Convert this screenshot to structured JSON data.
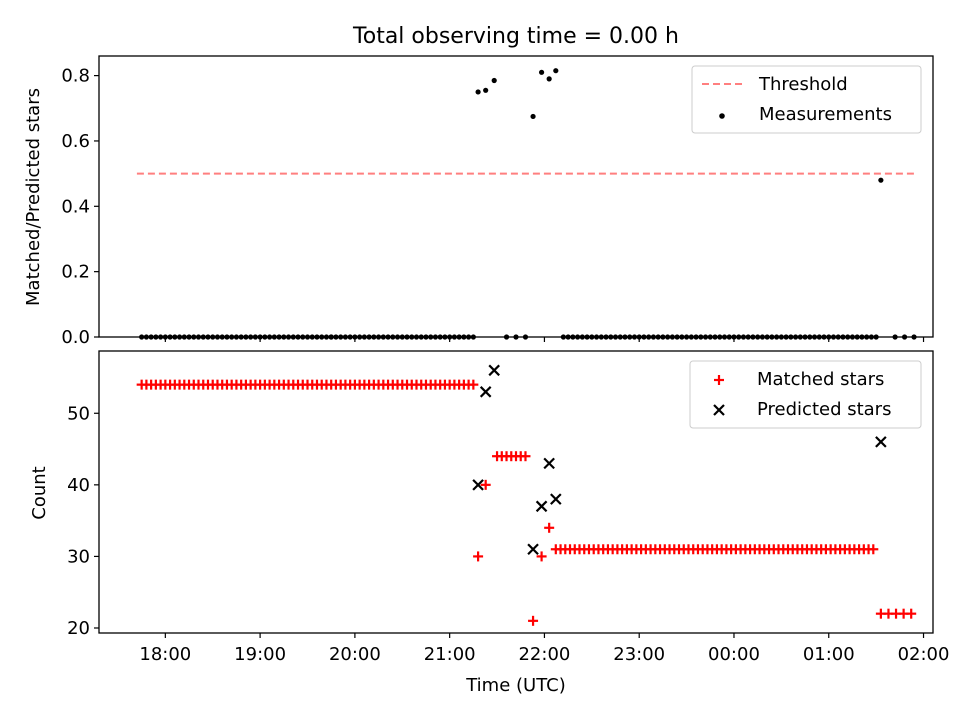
{
  "chart_data": {
    "title": "Total observing time = 0.00 h",
    "xlabel": "Time (UTC)",
    "x_ticks": [
      "18:00",
      "19:00",
      "20:00",
      "21:00",
      "22:00",
      "23:00",
      "00:00",
      "01:00",
      "02:00"
    ],
    "x_range_hours": [
      17.3,
      26.1
    ],
    "panels": [
      {
        "type": "scatter",
        "ylabel": "Matched/Predicted stars",
        "ylim": [
          0,
          0.86
        ],
        "y_ticks": [
          "0.0",
          "0.2",
          "0.4",
          "0.6",
          "0.8"
        ],
        "legend_position": "upper-right",
        "threshold": {
          "name": "Threshold",
          "value": 0.5,
          "x_start": 17.7,
          "x_end": 25.9,
          "color": "#ff7f7f"
        },
        "series": [
          {
            "name": "Measurements",
            "color": "#000000",
            "marker": "dot",
            "zero_ranges": [
              [
                17.75,
                19.75,
                0.05
              ],
              [
                19.75,
                21.25,
                0.05
              ],
              [
                21.6,
                21.8,
                0.1
              ],
              [
                22.2,
                25.5,
                0.05
              ],
              [
                25.7,
                25.9,
                0.1
              ]
            ],
            "points": [
              [
                21.3,
                0.75
              ],
              [
                21.38,
                0.755
              ],
              [
                21.47,
                0.785
              ],
              [
                21.88,
                0.675
              ],
              [
                21.97,
                0.81
              ],
              [
                22.05,
                0.79
              ],
              [
                22.12,
                0.815
              ],
              [
                25.55,
                0.48
              ]
            ]
          }
        ]
      },
      {
        "type": "scatter",
        "ylabel": "Count",
        "ylim": [
          19.3,
          58.7
        ],
        "y_ticks": [
          "20",
          "30",
          "40",
          "50"
        ],
        "legend_position": "upper-right",
        "series": [
          {
            "name": "Matched stars",
            "color": "#ff0000",
            "marker": "plus",
            "ranges": [
              [
                17.75,
                21.25,
                0.05,
                54
              ],
              [
                21.5,
                21.8,
                0.05,
                44
              ],
              [
                22.12,
                25.5,
                0.05,
                31
              ],
              [
                25.55,
                25.87,
                0.08,
                22
              ]
            ],
            "points": [
              [
                21.3,
                30
              ],
              [
                21.38,
                40
              ],
              [
                21.88,
                21
              ],
              [
                21.97,
                30
              ],
              [
                22.05,
                34
              ]
            ]
          },
          {
            "name": "Predicted stars",
            "color": "#000000",
            "marker": "x",
            "points": [
              [
                21.3,
                40
              ],
              [
                21.38,
                53
              ],
              [
                21.47,
                56
              ],
              [
                21.88,
                31
              ],
              [
                21.97,
                37
              ],
              [
                22.05,
                43
              ],
              [
                22.12,
                38
              ],
              [
                25.55,
                46
              ]
            ]
          }
        ]
      }
    ]
  }
}
